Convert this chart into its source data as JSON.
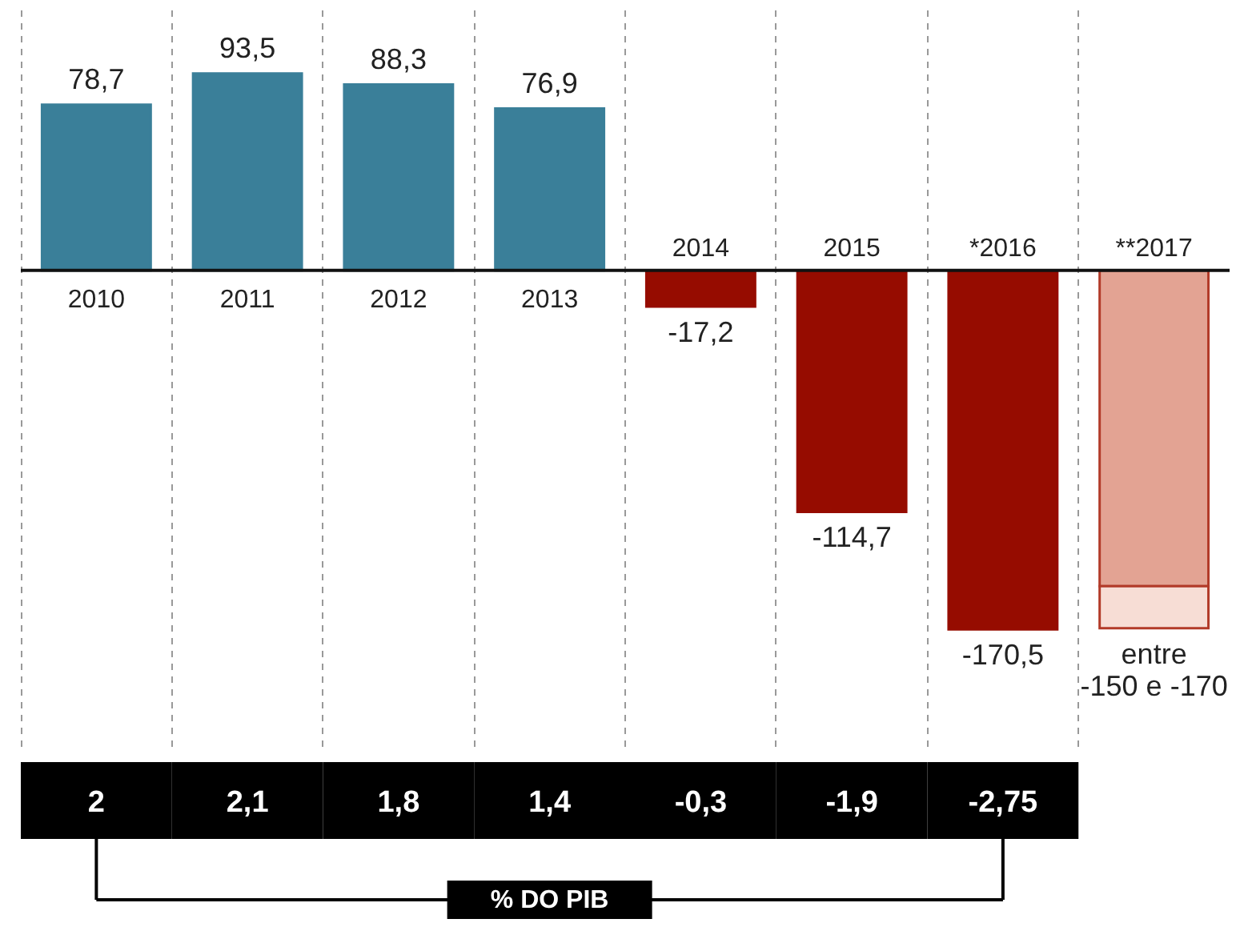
{
  "chart_data": {
    "type": "bar",
    "stacked": true,
    "grid": "x",
    "categories": [
      "2010",
      "2011",
      "2012",
      "2013",
      "2014",
      "2015",
      "*2016",
      "**2017"
    ],
    "series": [
      {
        "colors": [
          "#3a7f99",
          "#3a7f99",
          "#3a7f99",
          "#3a7f99",
          "#960c00",
          "#960c00",
          "#960c00",
          "#e3a393"
        ],
        "values": [
          78.7,
          93.5,
          88.3,
          76.9,
          -17.2,
          -114.7,
          -170.5,
          -150
        ],
        "value_labels": [
          "78,7",
          "93,5",
          "88,3",
          "76,9",
          "-17,2",
          "-114,7",
          "-170,5",
          null
        ]
      },
      {
        "colors": [
          null,
          null,
          null,
          null,
          null,
          null,
          null,
          "#f7ddd5"
        ],
        "values": [
          null,
          null,
          null,
          null,
          null,
          null,
          null,
          -20
        ],
        "value_labels": [
          null,
          null,
          null,
          null,
          null,
          null,
          null,
          "entre\n-150 e -170"
        ]
      }
    ],
    "annotations": [
      "2",
      "2,1",
      "1,8",
      "1,4",
      "-0,3",
      "-1,9",
      "-2,75",
      "% DO PIB"
    ]
  }
}
